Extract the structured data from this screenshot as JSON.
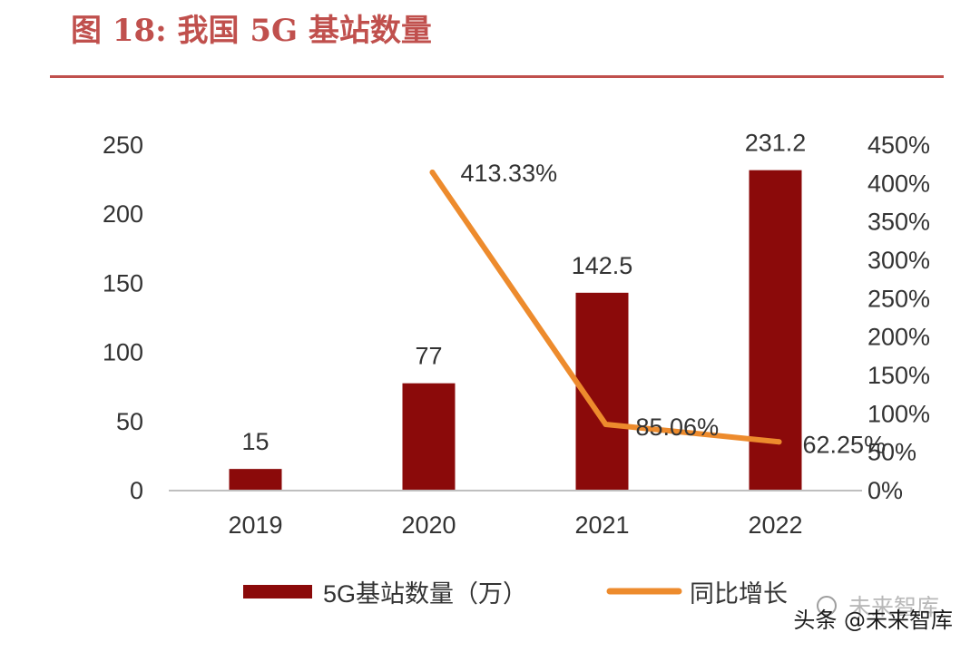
{
  "figure": {
    "title": "图 18:  我国 5G 基站数量"
  },
  "watermark": {
    "text": "头条 @未来智库",
    "faded_text": "未来智库"
  },
  "colors": {
    "title": "#c0504d",
    "bar": "#8b0a0a",
    "line": "#ed8b2d",
    "axis": "#bfbfbf",
    "text": "#333333"
  },
  "chart_data": {
    "type": "bar",
    "categories": [
      "2019",
      "2020",
      "2021",
      "2022"
    ],
    "series": [
      {
        "name": "5G基站数量（万）",
        "type": "bar",
        "axis": "left",
        "values": [
          15,
          77,
          142.5,
          231.2
        ],
        "labels": [
          "15",
          "77",
          "142.5",
          "231.2"
        ]
      },
      {
        "name": "同比增长",
        "type": "line",
        "axis": "right",
        "values": [
          null,
          413.33,
          85.06,
          62.25
        ],
        "labels": [
          "",
          "413.33%",
          "85.06%",
          "62.25%"
        ]
      }
    ],
    "y_left": {
      "min": 0,
      "max": 250,
      "ticks": [
        "0",
        "50",
        "100",
        "150",
        "200",
        "250"
      ]
    },
    "y_right": {
      "min": 0,
      "max": 450,
      "unit": "%",
      "ticks": [
        "0%",
        "50%",
        "100%",
        "150%",
        "200%",
        "250%",
        "300%",
        "350%",
        "400%",
        "450%"
      ]
    },
    "grid": false,
    "legend_position": "bottom"
  }
}
